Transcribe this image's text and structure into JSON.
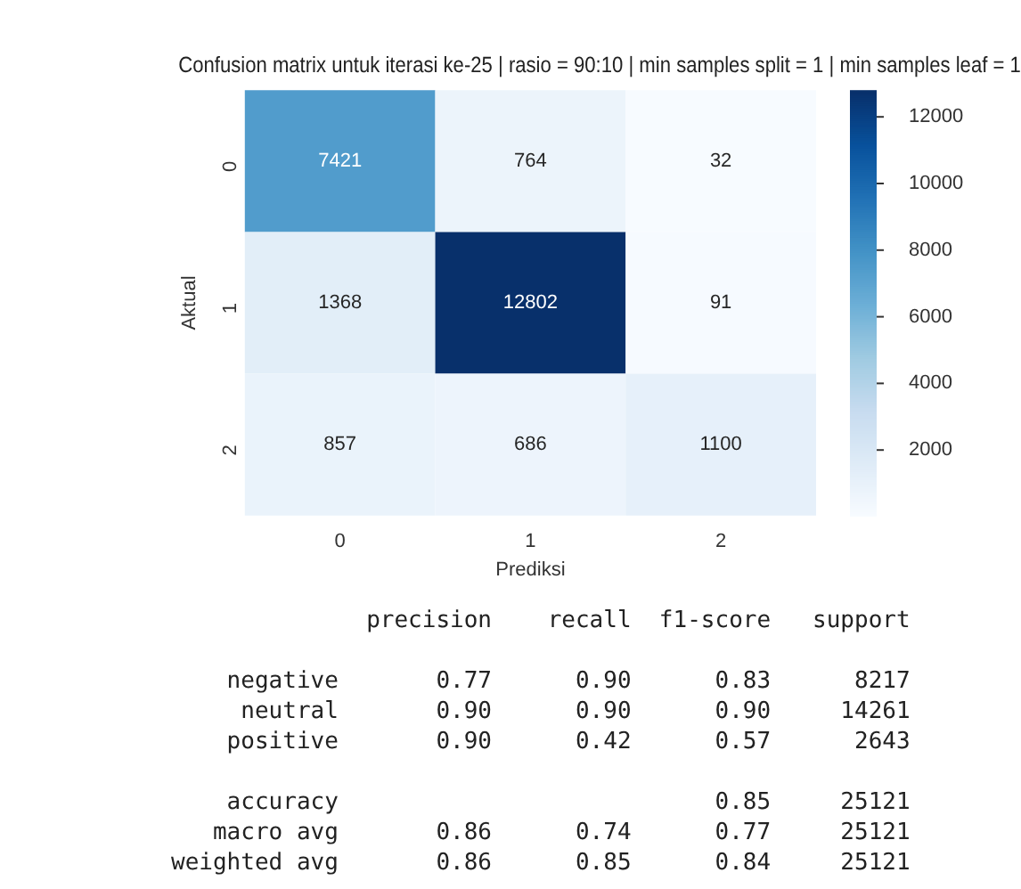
{
  "chart_data": {
    "type": "heatmap",
    "title": "Confusion matrix untuk iterasi ke-25 | rasio = 90:10 | min samples split = 1 | min samples leaf = 1",
    "xlabel": "Prediksi",
    "ylabel": "Aktual",
    "categories": [
      "0",
      "1",
      "2"
    ],
    "y_categories": [
      "0",
      "1",
      "2"
    ],
    "data_labels": true,
    "cells": [
      [
        7421,
        764,
        32
      ],
      [
        1368,
        12802,
        91
      ],
      [
        857,
        686,
        1100
      ]
    ],
    "clim": [
      32,
      12802
    ],
    "cticks": [
      2000,
      4000,
      6000,
      8000,
      10000,
      12000
    ],
    "annotations": [
      "              precision    recall  f1-score   support",
      "    negative       0.77      0.90      0.83      8217",
      "     neutral       0.90      0.90      0.90     14261",
      "    positive       0.90      0.42      0.57      2643",
      "    accuracy                           0.85     25121",
      "   macro avg       0.86      0.74      0.77     25121",
      "weighted avg       0.86      0.85      0.84     25121"
    ]
  }
}
